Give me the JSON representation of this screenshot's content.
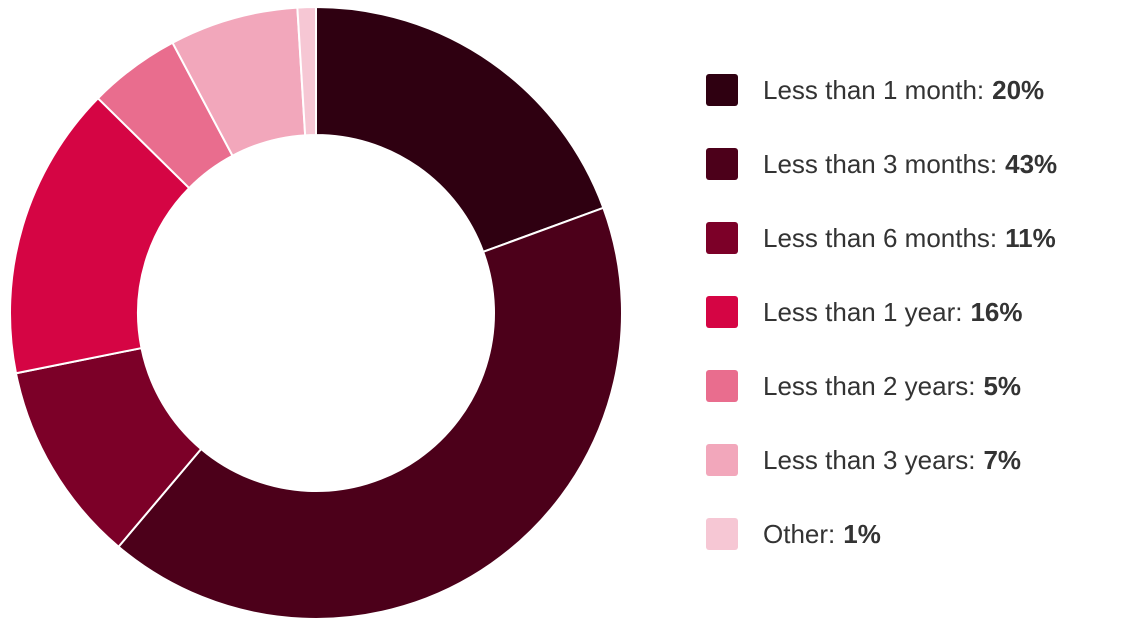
{
  "chart_data": {
    "type": "pie",
    "variant": "donut",
    "legend_position": "right",
    "labels": [
      "Less than 1 month:",
      "Less than 3 months:",
      "Less than 6 months:",
      "Less than 1 year:",
      "Less than 2 years:",
      "Less than 3 years:",
      "Other:"
    ],
    "values": [
      20,
      43,
      11,
      16,
      5,
      7,
      1
    ],
    "value_labels": [
      "20%",
      "43%",
      "11%",
      "16%",
      "5%",
      "7%",
      "1%"
    ],
    "colors": [
      "#2f0011",
      "#4c001a",
      "#7c0028",
      "#d50544",
      "#e96d8e",
      "#f2a7bb",
      "#f6c7d4"
    ],
    "slice_border_color": "#ffffff"
  }
}
